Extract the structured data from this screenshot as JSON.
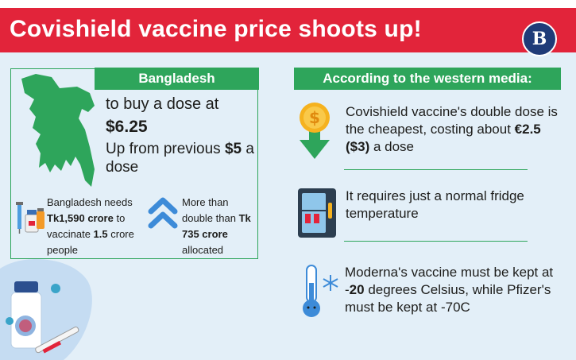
{
  "header": {
    "title": "Covishield vaccine price shoots up!",
    "logo_letter": "B"
  },
  "left_panel": {
    "heading": "Bangladesh",
    "dose_line1": "to buy a dose at",
    "dose_price": "$6.25",
    "prev_prefix": "Up from previous ",
    "prev_price": "$5",
    "prev_suffix": " a dose",
    "needs": {
      "t1": "Bangladesh needs ",
      "amount": "Tk1,590 crore",
      "t2": " to vaccinate ",
      "people": "1.5",
      "t3": " crore people"
    },
    "double": {
      "t1": "More than double than ",
      "amount": "Tk 735 crore",
      "t2": " allocated"
    }
  },
  "right_panel": {
    "heading": "According to the western media:",
    "fact1": {
      "t1": "Covishield vaccine's double dose is the cheapest, costing about ",
      "price": "€2.5 ($3)",
      "t2": " a dose"
    },
    "fact2": {
      "text": "It requires just a normal fridge temperature"
    },
    "fact3": {
      "t1": "Moderna's vaccine must be kept at -",
      "temp": "20",
      "t2": " degrees Celsius, while Pfizer's must be kept at -70C"
    }
  },
  "icons": {
    "map": "bangladesh-map-icon",
    "vial": "vaccine-vial-icon",
    "chevrons": "double-chevron-up-icon",
    "coin": "dollar-coin-down-arrow-icon",
    "fridge": "fridge-icon",
    "thermometer": "thermometer-icon",
    "snowflake": "snowflake-icon"
  },
  "colors": {
    "banner": "#e2243a",
    "accent_green": "#2ea55b",
    "background": "#e3eff8",
    "logo": "#1f3b78",
    "chevron_blue": "#3d8bd8"
  }
}
